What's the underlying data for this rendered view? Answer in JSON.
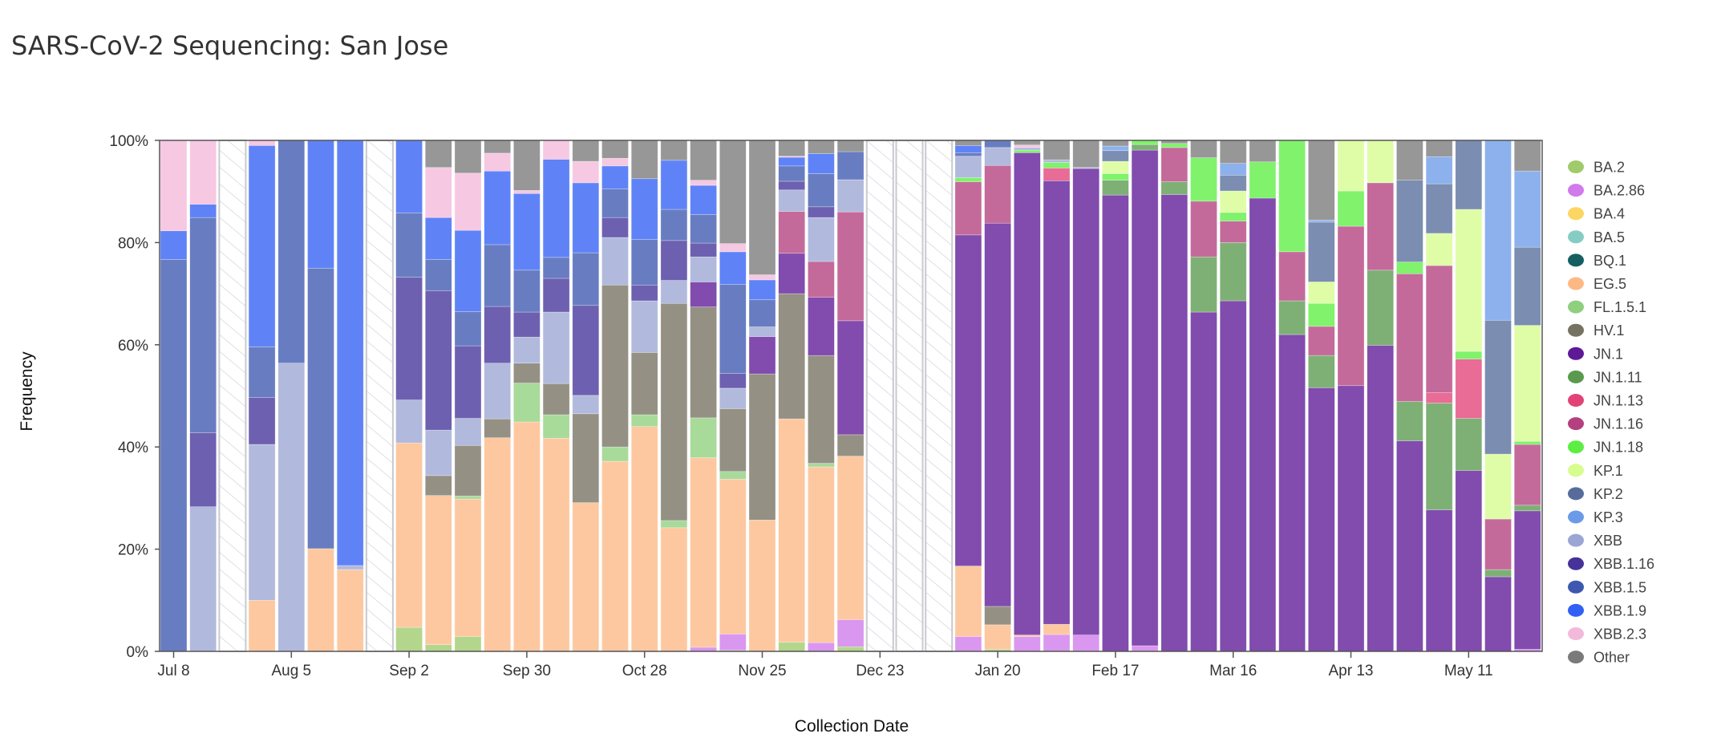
{
  "chart_data": {
    "type": "bar",
    "stacked": true,
    "title": "SARS-CoV-2 Sequencing: San Jose",
    "xlabel": "Collection Date",
    "ylabel": "Frequency",
    "ylim": [
      0,
      100
    ],
    "yticks": [
      {
        "v": 0,
        "label": "0%"
      },
      {
        "v": 20,
        "label": "20%"
      },
      {
        "v": 40,
        "label": "40%"
      },
      {
        "v": 60,
        "label": "60%"
      },
      {
        "v": 80,
        "label": "80%"
      },
      {
        "v": 100,
        "label": "100%"
      }
    ],
    "xticks": [
      {
        "index": 0,
        "label": "Jul 8"
      },
      {
        "index": 4,
        "label": "Aug 5"
      },
      {
        "index": 8,
        "label": "Sep 2"
      },
      {
        "index": 12,
        "label": "Sep 30"
      },
      {
        "index": 16,
        "label": "Oct 28"
      },
      {
        "index": 20,
        "label": "Nov 25"
      },
      {
        "index": 24,
        "label": "Dec 23"
      },
      {
        "index": 28,
        "label": "Jan 20"
      },
      {
        "index": 32,
        "label": "Feb 17"
      },
      {
        "index": 36,
        "label": "Mar 16"
      },
      {
        "index": 40,
        "label": "Apr 13"
      },
      {
        "index": 44,
        "label": "May 11"
      }
    ],
    "legend_position": "right",
    "series": [
      {
        "name": "BA.2",
        "color": "#9fcb6b"
      },
      {
        "name": "BA.2.86",
        "color": "#d07aeb"
      },
      {
        "name": "BA.4",
        "color": "#fdd563"
      },
      {
        "name": "BA.5",
        "color": "#85cdc4"
      },
      {
        "name": "BQ.1",
        "color": "#155f62"
      },
      {
        "name": "EG.5",
        "color": "#fdb985"
      },
      {
        "name": "FL.1.5.1",
        "color": "#8fcf7e"
      },
      {
        "name": "HV.1",
        "color": "#767262"
      },
      {
        "name": "JN.1",
        "color": "#5e1a96"
      },
      {
        "name": "JN.1.11",
        "color": "#5a9a4f"
      },
      {
        "name": "JN.1.13",
        "color": "#e24377"
      },
      {
        "name": "JN.1.16",
        "color": "#b4407f"
      },
      {
        "name": "JN.1.18",
        "color": "#5cee43"
      },
      {
        "name": "KP.1",
        "color": "#d6fd8e"
      },
      {
        "name": "KP.2",
        "color": "#566d9b"
      },
      {
        "name": "KP.3",
        "color": "#6b9be8"
      },
      {
        "name": "XBB",
        "color": "#9ba6d4"
      },
      {
        "name": "XBB.1.16",
        "color": "#45339a"
      },
      {
        "name": "XBB.1.5",
        "color": "#3e58b0"
      },
      {
        "name": "XBB.1.9",
        "color": "#3260f5"
      },
      {
        "name": "XBB.2.3",
        "color": "#f3b9da"
      },
      {
        "name": "Other",
        "color": "#7a7a7a"
      }
    ],
    "bars": [
      {
        "XBB.1.5": 76.7,
        "XBB.1.9": 5.6,
        "XBB.2.3": 17.7
      },
      {
        "XBB": 28.3,
        "XBB.1.16": 14.5,
        "XBB.1.5": 42.1,
        "XBB.1.9": 2.6,
        "XBB.2.3": 12.5
      },
      null,
      {
        "EG.5": 10.0,
        "XBB": 30.5,
        "XBB.1.16": 9.2,
        "XBB.1.5": 9.9,
        "XBB.1.9": 39.4,
        "XBB.2.3": 1.0
      },
      {
        "XBB": 56.4,
        "XBB.1.5": 43.6
      },
      {
        "EG.5": 20.1,
        "XBB.1.5": 54.9,
        "XBB.1.9": 25.0
      },
      {
        "EG.5": 16.0,
        "XBB": 0.8,
        "XBB.1.9": 83.2
      },
      null,
      {
        "BA.2": 4.7,
        "EG.5": 36.1,
        "XBB": 8.4,
        "XBB.1.16": 24.0,
        "XBB.1.5": 12.6,
        "XBB.1.9": 14.2
      },
      {
        "BA.2": 1.3,
        "EG.5": 29.2,
        "HV.1": 3.9,
        "XBB": 8.9,
        "XBB.1.16": 27.3,
        "XBB.1.5": 6.1,
        "XBB.1.9": 8.2,
        "XBB.2.3": 9.8,
        "Other": 5.3
      },
      {
        "BA.2": 2.9,
        "EG.5": 26.9,
        "FL.1.5.1": 0.6,
        "HV.1": 9.9,
        "XBB": 5.3,
        "XBB.1.16": 14.2,
        "XBB.1.5": 6.7,
        "XBB.1.9": 15.9,
        "XBB.2.3": 11.2,
        "Other": 6.4
      },
      {
        "EG.5": 41.8,
        "HV.1": 3.7,
        "XBB": 10.9,
        "XBB.1.16": 11.1,
        "XBB.1.5": 12.1,
        "XBB.1.9": 14.4,
        "XBB.2.3": 3.5,
        "Other": 2.5
      },
      {
        "EG.5": 44.9,
        "FL.1.5.1": 7.6,
        "HV.1": 3.9,
        "XBB": 5.1,
        "XBB.1.16": 4.9,
        "XBB.1.5": 8.2,
        "XBB.1.9": 15.0,
        "XBB.2.3": 0.6,
        "Other": 9.8
      },
      {
        "EG.5": 41.7,
        "FL.1.5.1": 4.6,
        "HV.1": 6.1,
        "XBB": 14.0,
        "XBB.1.16": 6.6,
        "XBB.1.5": 4.1,
        "XBB.1.9": 19.2,
        "XBB.2.3": 3.7
      },
      {
        "EG.5": 29.1,
        "HV.1": 17.4,
        "XBB": 3.6,
        "XBB.1.16": 17.6,
        "XBB.1.5": 10.3,
        "XBB.1.9": 13.7,
        "XBB.2.3": 4.2,
        "Other": 4.1
      },
      {
        "EG.5": 37.2,
        "FL.1.5.1": 2.8,
        "HV.1": 31.7,
        "XBB": 9.3,
        "XBB.1.16": 3.9,
        "XBB.1.5": 5.6,
        "XBB.1.9": 4.5,
        "XBB.2.3": 1.5,
        "Other": 3.5
      },
      {
        "EG.5": 44.0,
        "FL.1.5.1": 2.3,
        "HV.1": 12.2,
        "XBB": 10.1,
        "XBB.1.16": 3.1,
        "XBB.1.5": 8.9,
        "XBB.1.9": 11.9,
        "Other": 7.5
      },
      {
        "EG.5": 24.2,
        "FL.1.5.1": 1.4,
        "HV.1": 42.5,
        "XBB": 4.5,
        "XBB.1.16": 7.8,
        "XBB.1.5": 6.1,
        "XBB.1.9": 9.6,
        "Other": 3.9
      },
      {
        "BA.2.86": 0.8,
        "EG.5": 37.1,
        "FL.1.5.1": 7.8,
        "HV.1": 21.7,
        "JN.1": 4.9,
        "XBB": 4.9,
        "XBB.1.16": 2.7,
        "XBB.1.5": 5.6,
        "XBB.1.9": 5.7,
        "XBB.2.3": 1.0,
        "Other": 7.8
      },
      {
        "BA.2": 0.2,
        "BA.2.86": 3.2,
        "EG.5": 30.3,
        "FL.1.5.1": 1.5,
        "HV.1": 12.3,
        "XBB": 4.0,
        "XBB.1.16": 2.9,
        "XBB.1.5": 17.4,
        "XBB.1.9": 6.4,
        "XBB.2.3": 1.6,
        "Other": 20.2
      },
      {
        "EG.5": 25.7,
        "HV.1": 28.6,
        "JN.1": 7.3,
        "XBB": 1.9,
        "XBB.1.5": 5.3,
        "XBB.1.9": 3.9,
        "XBB.2.3": 1.0,
        "Other": 26.3
      },
      {
        "BA.2": 1.8,
        "EG.5": 43.7,
        "HV.1": 24.5,
        "JN.1": 7.9,
        "JN.1.16": 8.2,
        "XBB": 4.2,
        "XBB.1.16": 1.7,
        "XBB.1.5": 3.0,
        "XBB.1.9": 1.7,
        "XBB.2.3": 0.2,
        "Other": 3.1
      },
      {
        "BA.2.86": 1.7,
        "EG.5": 34.4,
        "FL.1.5.1": 0.7,
        "HV.1": 21.1,
        "JN.1": 11.4,
        "JN.1.16": 7.0,
        "XBB": 8.6,
        "XBB.1.16": 2.1,
        "XBB.1.5": 6.5,
        "XBB.1.9": 3.9,
        "Other": 2.6
      },
      {
        "BA.2": 0.9,
        "BA.2.86": 5.3,
        "EG.5": 32.0,
        "HV.1": 4.2,
        "JN.1": 22.3,
        "JN.1.16": 21.3,
        "XBB": 6.3,
        "XBB.1.5": 5.5,
        "Other": 2.2
      },
      null,
      null,
      null,
      {
        "BA.2.86": 2.9,
        "EG.5": 13.8,
        "JN.1": 64.8,
        "JN.1.16": 10.4,
        "JN.1.18": 0.8,
        "XBB": 4.2,
        "XBB.1.5": 0.7,
        "XBB.1.9": 1.4,
        "Other": 1.0
      },
      {
        "BA.2": 0.4,
        "EG.5": 4.8,
        "HV.1": 3.6,
        "JN.1": 75.0,
        "JN.1.16": 11.3,
        "XBB": 3.5,
        "XBB.1.5": 1.4
      },
      {
        "BA.2.86": 2.9,
        "EG.5": 0.3,
        "JN.1": 94.4,
        "JN.1.18": 0.5,
        "XBB": 0.5,
        "XBB.2.3": 0.5,
        "Other": 0.9
      },
      {
        "BA.2.86": 3.3,
        "EG.5": 2.0,
        "JN.1": 86.8,
        "JN.1.13": 2.5,
        "JN.1.18": 1.1,
        "XBB": 0.5,
        "Other": 3.8
      },
      {
        "BA.2.86": 3.2,
        "JN.1": 91.3,
        "XBB": 0.2,
        "Other": 5.3
      },
      {
        "JN.1": 89.3,
        "JN.1.11": 2.9,
        "JN.1.18": 1.3,
        "KP.1": 2.4,
        "KP.2": 2.1,
        "KP.3": 0.9,
        "Other": 1.1
      },
      {
        "BA.2.86": 1.1,
        "JN.1": 97.0,
        "JN.1.11": 1.1,
        "JN.1.18": 0.8
      },
      {
        "JN.1": 89.4,
        "JN.1.11": 2.5,
        "JN.1.16": 6.7,
        "JN.1.18": 0.8,
        "Other": 0.6
      },
      {
        "JN.1": 66.4,
        "JN.1.11": 10.8,
        "JN.1.16": 10.9,
        "JN.1.18": 8.5,
        "Other": 3.4
      },
      {
        "JN.1": 68.6,
        "JN.1.11": 11.4,
        "JN.1.16": 4.2,
        "JN.1.18": 1.7,
        "KP.1": 4.2,
        "KP.2": 3.1,
        "KP.3": 2.3,
        "Other": 4.5
      },
      {
        "JN.1": 88.7,
        "JN.1.18": 7.1,
        "Other": 4.2
      },
      {
        "JN.1": 62.0,
        "JN.1.11": 6.6,
        "JN.1.16": 9.6,
        "JN.1.18": 21.8
      },
      {
        "JN.1": 51.6,
        "JN.1.11": 6.3,
        "JN.1.16": 5.7,
        "JN.1.18": 4.5,
        "KP.1": 4.2,
        "KP.2": 11.7,
        "KP.3": 0.4,
        "Other": 15.6
      },
      {
        "JN.1": 52.0,
        "JN.1.16": 31.2,
        "JN.1.18": 6.9,
        "KP.1": 9.9
      },
      {
        "JN.1": 59.9,
        "JN.1.11": 14.7,
        "JN.1.16": 17.1,
        "KP.1": 8.3
      },
      {
        "JN.1": 41.2,
        "JN.1.11": 7.7,
        "JN.1.16": 25.0,
        "JN.1.18": 2.3,
        "KP.2": 16.0,
        "Other": 7.8
      },
      {
        "JN.1": 27.7,
        "JN.1.11": 20.9,
        "JN.1.13": 2.0,
        "JN.1.16": 24.9,
        "KP.1": 6.3,
        "KP.2": 9.7,
        "KP.3": 5.3,
        "Other": 3.2
      },
      {
        "JN.1": 35.4,
        "JN.1.11": 10.2,
        "JN.1.13": 11.6,
        "JN.1.18": 1.5,
        "KP.1": 27.8,
        "KP.2": 13.5
      },
      {
        "JN.1": 14.6,
        "JN.1.11": 1.4,
        "JN.1.16": 9.9,
        "KP.1": 12.7,
        "KP.2": 26.2,
        "KP.3": 35.2
      },
      {
        "BA.2.86": 0.4,
        "JN.1": 27.1,
        "JN.1.11": 1.1,
        "JN.1.16": 11.9,
        "JN.1.18": 0.6,
        "KP.1": 22.7,
        "KP.2": 15.3,
        "KP.3": 14.9,
        "Other": 6.0
      }
    ]
  }
}
